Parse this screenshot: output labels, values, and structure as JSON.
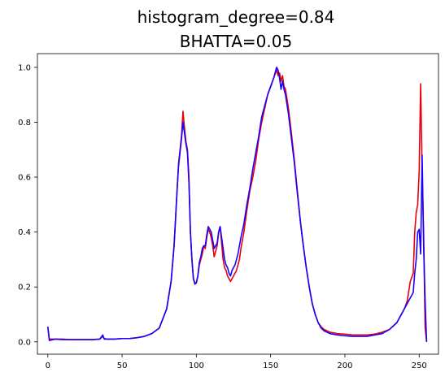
{
  "chart_data": {
    "type": "line",
    "title": [
      "histogram_degree=0.84",
      "BHATTA=0.05"
    ],
    "xlabel": "",
    "ylabel": "",
    "xlim": [
      -7,
      263
    ],
    "ylim": [
      -0.045,
      1.05
    ],
    "xticks": [
      0,
      50,
      100,
      150,
      200,
      250
    ],
    "yticks": [
      0.0,
      0.2,
      0.4,
      0.6,
      0.8,
      1.0
    ],
    "ytick_labels": [
      "0.0",
      "0.2",
      "0.4",
      "0.6",
      "0.8",
      "1.0"
    ],
    "grid": false,
    "legend": null,
    "series": [
      {
        "color": "#e8000b",
        "x": [
          0,
          1,
          5,
          10,
          15,
          20,
          25,
          30,
          35,
          37,
          38,
          40,
          45,
          50,
          55,
          60,
          65,
          70,
          75,
          80,
          83,
          85,
          87,
          88,
          89,
          90,
          91,
          92,
          93,
          94,
          95,
          96,
          97,
          98,
          99,
          100,
          101,
          102,
          103,
          104,
          105,
          106,
          107,
          108,
          109,
          110,
          111,
          112,
          113,
          114,
          115,
          116,
          117,
          118,
          119,
          120,
          121,
          122,
          123,
          124,
          125,
          126,
          127,
          128,
          129,
          130,
          132,
          134,
          136,
          138,
          140,
          142,
          144,
          146,
          148,
          150,
          152,
          154,
          155,
          156,
          157,
          158,
          159,
          160,
          162,
          164,
          166,
          168,
          170,
          172,
          174,
          176,
          178,
          180,
          182,
          184,
          186,
          188,
          190,
          195,
          200,
          205,
          210,
          215,
          220,
          225,
          230,
          235,
          240,
          242,
          244,
          246,
          247,
          248,
          249,
          250,
          251,
          252,
          253,
          254,
          255
        ],
        "y": [
          0.055,
          0.01,
          0.01,
          0.01,
          0.008,
          0.008,
          0.008,
          0.008,
          0.01,
          0.02,
          0.012,
          0.01,
          0.01,
          0.012,
          0.012,
          0.015,
          0.02,
          0.03,
          0.05,
          0.12,
          0.22,
          0.35,
          0.55,
          0.65,
          0.7,
          0.75,
          0.84,
          0.78,
          0.73,
          0.7,
          0.6,
          0.4,
          0.3,
          0.23,
          0.215,
          0.215,
          0.24,
          0.28,
          0.3,
          0.32,
          0.35,
          0.34,
          0.38,
          0.41,
          0.4,
          0.38,
          0.35,
          0.31,
          0.33,
          0.35,
          0.4,
          0.42,
          0.36,
          0.3,
          0.27,
          0.26,
          0.24,
          0.23,
          0.22,
          0.23,
          0.24,
          0.25,
          0.26,
          0.28,
          0.3,
          0.34,
          0.4,
          0.48,
          0.55,
          0.6,
          0.66,
          0.74,
          0.8,
          0.85,
          0.9,
          0.93,
          0.96,
          0.99,
          0.97,
          0.98,
          0.95,
          0.97,
          0.93,
          0.92,
          0.85,
          0.76,
          0.66,
          0.55,
          0.44,
          0.35,
          0.27,
          0.2,
          0.14,
          0.1,
          0.07,
          0.055,
          0.045,
          0.04,
          0.035,
          0.03,
          0.028,
          0.025,
          0.025,
          0.025,
          0.028,
          0.035,
          0.045,
          0.07,
          0.12,
          0.15,
          0.22,
          0.25,
          0.4,
          0.47,
          0.5,
          0.62,
          0.94,
          0.62,
          0.4,
          0.05,
          0.0
        ]
      },
      {
        "color": "#1a00ff",
        "x": [
          0,
          1,
          5,
          10,
          15,
          20,
          25,
          30,
          35,
          37,
          38,
          40,
          45,
          50,
          55,
          60,
          65,
          70,
          75,
          80,
          83,
          85,
          87,
          88,
          89,
          90,
          91,
          92,
          93,
          94,
          95,
          96,
          97,
          98,
          99,
          100,
          101,
          102,
          103,
          104,
          105,
          106,
          107,
          108,
          109,
          110,
          111,
          112,
          113,
          114,
          115,
          116,
          117,
          118,
          119,
          120,
          121,
          122,
          123,
          124,
          125,
          126,
          127,
          128,
          129,
          130,
          132,
          134,
          136,
          138,
          140,
          142,
          144,
          146,
          148,
          150,
          152,
          154,
          155,
          156,
          157,
          158,
          159,
          160,
          162,
          164,
          166,
          168,
          170,
          172,
          174,
          176,
          178,
          180,
          182,
          184,
          186,
          188,
          190,
          195,
          200,
          205,
          210,
          215,
          220,
          225,
          230,
          235,
          240,
          242,
          244,
          246,
          247,
          248,
          249,
          250,
          251,
          252,
          253,
          254,
          255
        ],
        "y": [
          0.055,
          0.005,
          0.01,
          0.008,
          0.008,
          0.008,
          0.008,
          0.008,
          0.01,
          0.025,
          0.01,
          0.01,
          0.01,
          0.012,
          0.012,
          0.015,
          0.02,
          0.03,
          0.05,
          0.12,
          0.22,
          0.35,
          0.55,
          0.64,
          0.69,
          0.74,
          0.8,
          0.76,
          0.72,
          0.69,
          0.58,
          0.4,
          0.3,
          0.23,
          0.21,
          0.215,
          0.24,
          0.29,
          0.31,
          0.34,
          0.35,
          0.35,
          0.39,
          0.42,
          0.41,
          0.4,
          0.37,
          0.34,
          0.35,
          0.36,
          0.4,
          0.42,
          0.38,
          0.34,
          0.3,
          0.28,
          0.27,
          0.25,
          0.24,
          0.26,
          0.27,
          0.28,
          0.3,
          0.32,
          0.35,
          0.38,
          0.43,
          0.5,
          0.56,
          0.63,
          0.69,
          0.75,
          0.82,
          0.86,
          0.9,
          0.93,
          0.96,
          1.0,
          0.99,
          0.96,
          0.92,
          0.95,
          0.92,
          0.9,
          0.83,
          0.74,
          0.65,
          0.54,
          0.44,
          0.35,
          0.27,
          0.2,
          0.14,
          0.1,
          0.07,
          0.05,
          0.04,
          0.035,
          0.03,
          0.025,
          0.022,
          0.02,
          0.02,
          0.02,
          0.025,
          0.03,
          0.045,
          0.07,
          0.12,
          0.14,
          0.16,
          0.18,
          0.25,
          0.3,
          0.4,
          0.41,
          0.32,
          0.68,
          0.35,
          0.15,
          0.0
        ]
      }
    ]
  }
}
